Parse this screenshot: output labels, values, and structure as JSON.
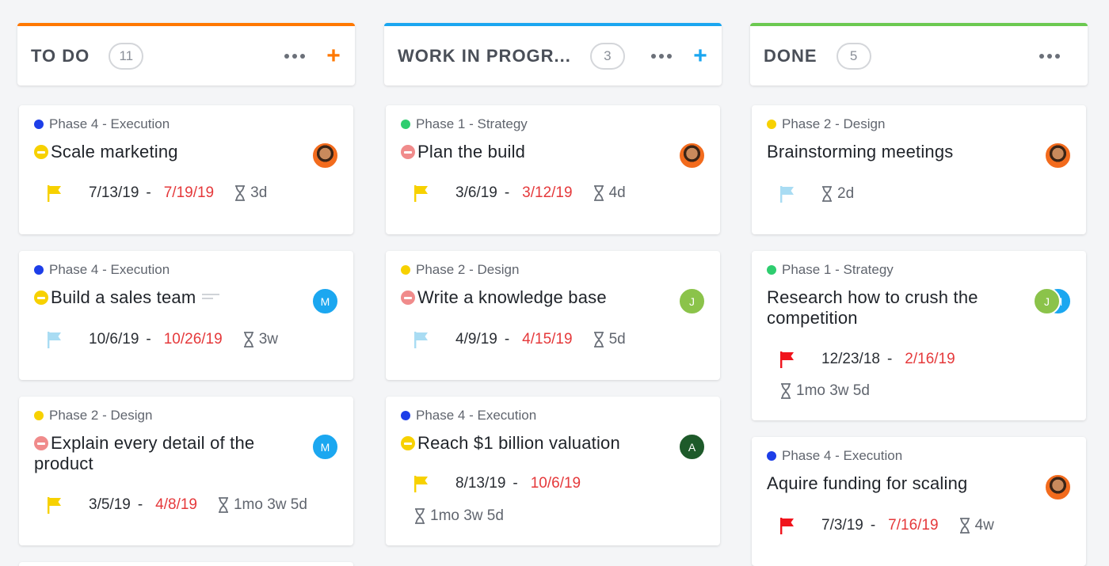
{
  "colors": {
    "todo_accent": "#ff7800",
    "wip_accent": "#1aa6f0",
    "done_accent": "#6bc950",
    "phase_execution": "#1d3ee8",
    "phase_strategy": "#2ecd6f",
    "phase_design": "#f7d100",
    "due_red": "#e5393b"
  },
  "columns": [
    {
      "title": "TO DO",
      "count": "11",
      "cards": [
        {
          "phase": "Phase 4 - Execution",
          "title": "Scale marketing",
          "start": "7/13/19",
          "dash": "-",
          "due": "7/19/19",
          "duration": "3d",
          "avatar": ""
        },
        {
          "phase": "Phase 4 - Execution",
          "title": "Build a sales team",
          "start": "10/6/19",
          "dash": "-",
          "due": "10/26/19",
          "duration": "3w",
          "avatar": "M"
        },
        {
          "phase": "Phase 2 - Design",
          "title": "Explain every detail of the product",
          "start": "3/5/19",
          "dash": "-",
          "due": "4/8/19",
          "duration": "1mo 3w 5d",
          "avatar": "M"
        }
      ]
    },
    {
      "title": "WORK IN PROGR...",
      "count": "3",
      "cards": [
        {
          "phase": "Phase 1 - Strategy",
          "title": "Plan the build",
          "start": "3/6/19",
          "dash": "-",
          "due": "3/12/19",
          "duration": "4d",
          "avatar": ""
        },
        {
          "phase": "Phase 2 - Design",
          "title": "Write a knowledge base",
          "start": "4/9/19",
          "dash": "-",
          "due": "4/15/19",
          "duration": "5d",
          "avatar": "J"
        },
        {
          "phase": "Phase 4 - Execution",
          "title": "Reach $1 billion valuation",
          "start": "8/13/19",
          "dash": "-",
          "due": "10/6/19",
          "duration": "1mo 3w 5d",
          "avatar": "A"
        }
      ]
    },
    {
      "title": "DONE",
      "count": "5",
      "cards": [
        {
          "phase": "Phase 2 - Design",
          "title": "Brainstorming meetings",
          "duration": "2d",
          "avatar": ""
        },
        {
          "phase": "Phase 1 - Strategy",
          "title": "Research how to crush the competition",
          "start": "12/23/18",
          "dash": "-",
          "due": "2/16/19",
          "duration": "1mo 3w 5d",
          "avatar": "J",
          "avatar2": "M"
        },
        {
          "phase": "Phase 4 - Execution",
          "title": "Aquire funding for scaling",
          "start": "7/3/19",
          "dash": "-",
          "due": "7/16/19",
          "duration": "4w",
          "avatar": ""
        }
      ]
    }
  ]
}
